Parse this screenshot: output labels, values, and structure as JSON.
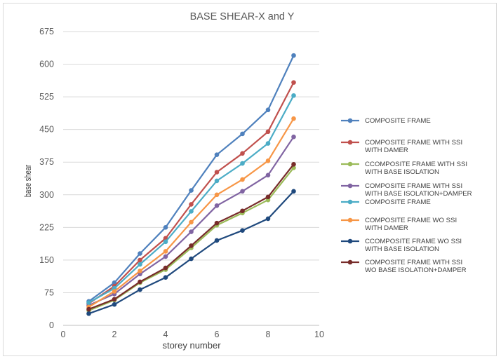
{
  "chart_data": {
    "type": "line",
    "title": "BASE SHEAR-X and Y",
    "xlabel": "storey number",
    "ylabel": "base shear",
    "xlim": [
      0,
      10
    ],
    "ylim": [
      0,
      675
    ],
    "xticks": [
      0,
      2,
      4,
      6,
      8,
      10
    ],
    "yticks": [
      0,
      75,
      150,
      225,
      300,
      375,
      450,
      525,
      600,
      675
    ],
    "grid": true,
    "legend_position": "right",
    "x": [
      1,
      2,
      3,
      4,
      5,
      6,
      7,
      8,
      9
    ],
    "series": [
      {
        "name": "COMPOSITE FRAME",
        "color": "#4f81bd",
        "values": [
          55,
          98,
          165,
          225,
          310,
          392,
          440,
          495,
          620
        ]
      },
      {
        "name": "COMPOSITE FRAME WITH SSI WITH DAMER",
        "color": "#c0504d",
        "values": [
          50,
          90,
          150,
          200,
          278,
          352,
          395,
          445,
          558
        ]
      },
      {
        "name": "CCOMPOSITE FRAME WITH SSI WITH BASE ISOLATION",
        "color": "#9bbb59",
        "values": [
          34,
          58,
          98,
          128,
          178,
          230,
          258,
          288,
          362
        ]
      },
      {
        "name": "COMPOSITE FRAME WITH SSI WITH BASE ISOLATION+DAMPER",
        "color": "#8064a2",
        "values": [
          46,
          72,
          118,
          158,
          215,
          275,
          308,
          345,
          433
        ]
      },
      {
        "name": "COMPOSITE FRAME",
        "color": "#4bacc6",
        "values": [
          52,
          85,
          140,
          192,
          262,
          332,
          372,
          418,
          528
        ]
      },
      {
        "name": "COMPOSITE FRAME WO SSI WITH DAMER",
        "color": "#f79646",
        "values": [
          42,
          78,
          125,
          170,
          237,
          300,
          335,
          378,
          475
        ]
      },
      {
        "name": "CCOMPOSITE FRAME WO SSI WITH BASE ISOLATION",
        "color": "#1f497d",
        "values": [
          27,
          48,
          82,
          110,
          153,
          195,
          218,
          245,
          308
        ]
      },
      {
        "name": "COMPOSITE FRAME WITH SSI WO BASE ISOLATION+DAMPER",
        "color": "#772c2a",
        "values": [
          37,
          60,
          100,
          132,
          183,
          235,
          263,
          295,
          370
        ]
      }
    ]
  },
  "legend": [
    {
      "lines": [
        "COMPOSITE FRAME"
      ]
    },
    {
      "lines": [
        "COMPOSITE FRAME WITH SSI",
        "WITH DAMER"
      ]
    },
    {
      "lines": [
        "CCOMPOSITE FRAME WITH SSI",
        "WITH BASE ISOLATION"
      ]
    },
    {
      "lines": [
        "COMPOSITE FRAME WITH SSI",
        "WITH BASE ISOLATION+DAMPER"
      ]
    },
    {
      "lines": [
        "COMPOSITE FRAME"
      ]
    },
    {
      "lines": [
        "COMPOSITE FRAME WO SSI",
        "WITH DAMER"
      ]
    },
    {
      "lines": [
        "CCOMPOSITE FRAME WO SSI",
        "WITH BASE ISOLATION"
      ]
    },
    {
      "lines": [
        "COMPOSITE FRAME WITH SSI",
        "WO BASE ISOLATION+DAMPER"
      ]
    }
  ]
}
